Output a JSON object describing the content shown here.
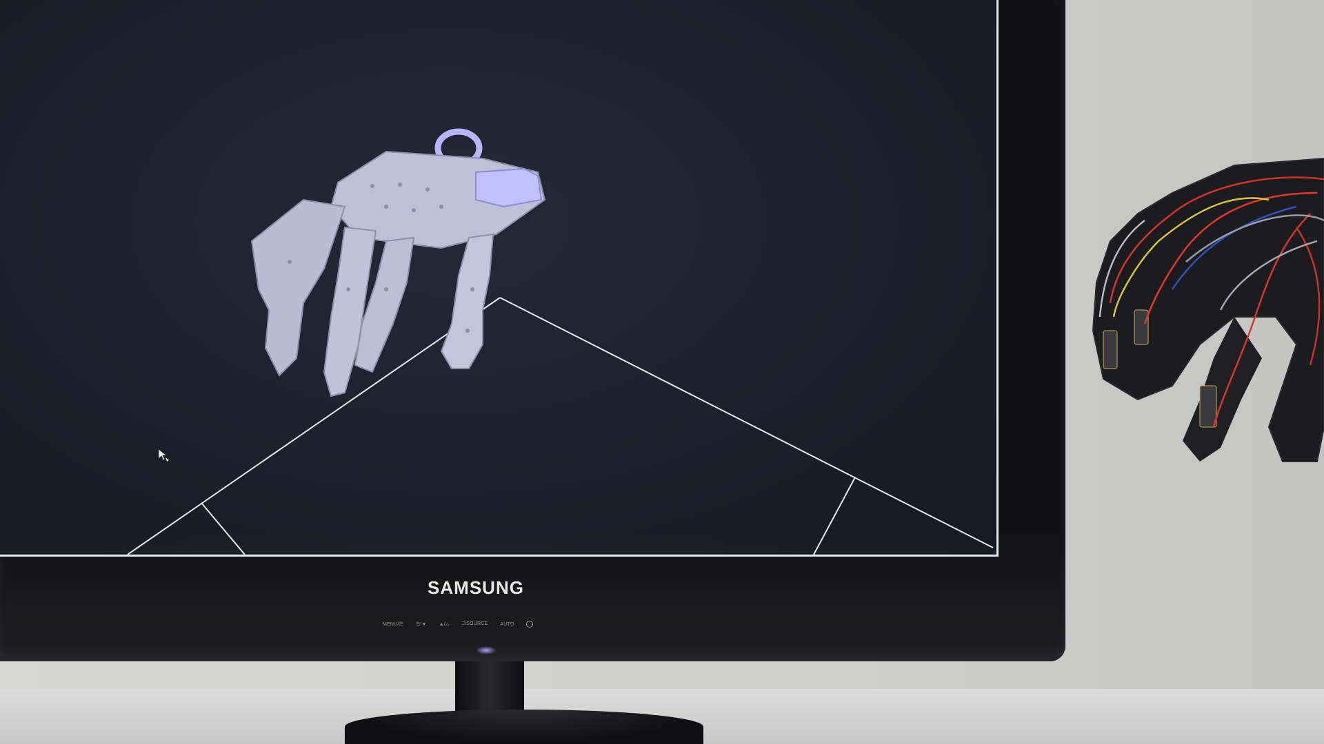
{
  "monitor": {
    "brand": "SAMSUNG",
    "controls": [
      "MENU/☰",
      "☰/▼",
      "▲/△",
      "⎕/SOURCE",
      "AUTO"
    ]
  },
  "scene": {
    "subject": "robot-hand-3d-model",
    "accent_color": "#a9a4ff",
    "screen_color": "#1d1f2a"
  },
  "icons": [
    "mouse-cursor-icon",
    "power-icon"
  ]
}
